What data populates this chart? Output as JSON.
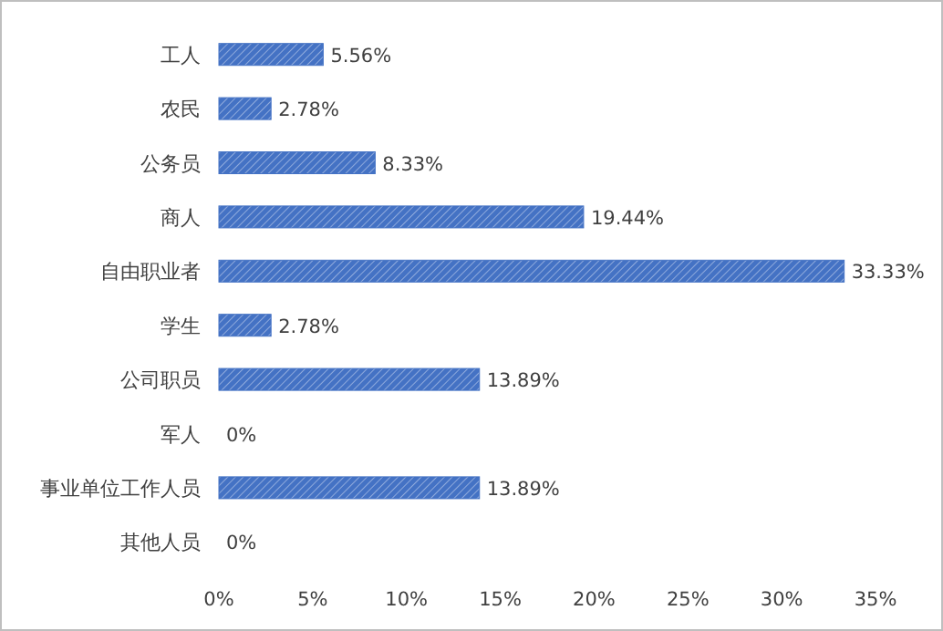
{
  "chart_data": {
    "type": "bar",
    "orientation": "horizontal",
    "categories": [
      "工人",
      "农民",
      "公务员",
      "商人",
      "自由职业者",
      "学生",
      "公司职员",
      "军人",
      "事业单位工作人员",
      "其他人员"
    ],
    "values": [
      5.56,
      2.78,
      8.33,
      19.44,
      33.33,
      2.78,
      13.89,
      0,
      13.89,
      0
    ],
    "value_labels": [
      "5.56%",
      "2.78%",
      "8.33%",
      "19.44%",
      "33.33%",
      "2.78%",
      "13.89%",
      "0%",
      "13.89%",
      "0%"
    ],
    "color": "#4472c4",
    "xlim": [
      0,
      35
    ],
    "xticks": [
      {
        "value": 0,
        "label": "0%"
      },
      {
        "value": 5,
        "label": "5%"
      },
      {
        "value": 10,
        "label": "10%"
      },
      {
        "value": 15,
        "label": "15%"
      },
      {
        "value": 20,
        "label": "20%"
      },
      {
        "value": 25,
        "label": "25%"
      },
      {
        "value": 30,
        "label": "30%"
      },
      {
        "value": 35,
        "label": "35%"
      }
    ],
    "grid": false
  }
}
